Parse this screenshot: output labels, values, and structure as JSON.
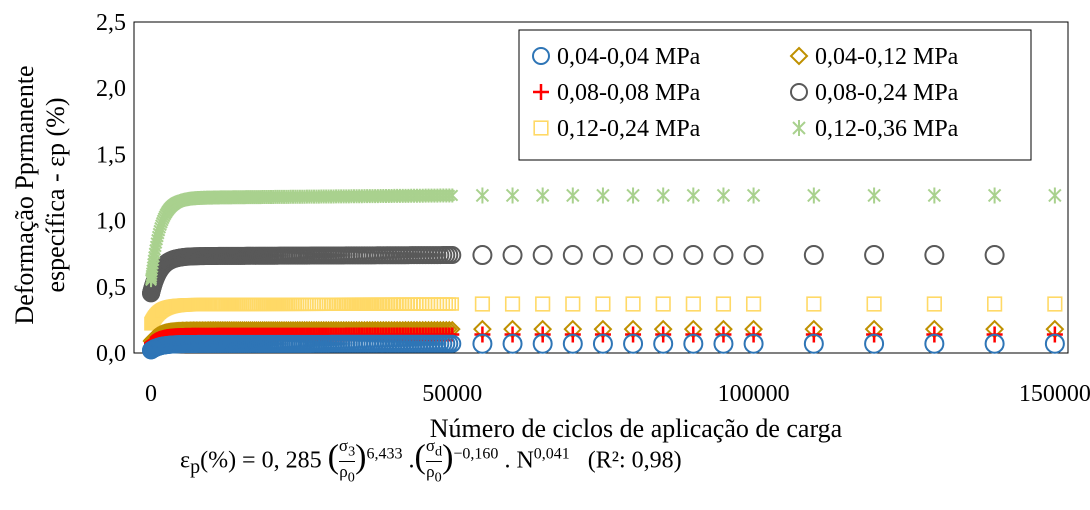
{
  "chart_data": {
    "type": "scatter",
    "title": "",
    "xlabel": "Número de ciclos de aplicação de carga",
    "ylabel_line1": "Deformação Pprmanente",
    "ylabel_line2": "específica - εp (%)",
    "xlim": [
      0,
      155000
    ],
    "ylim": [
      0,
      2.5
    ],
    "xticks": [
      0,
      50000,
      100000,
      150000
    ],
    "xtick_labels": [
      "0",
      "50000",
      "100000",
      "150000"
    ],
    "yticks": [
      0,
      0.5,
      1.0,
      1.5,
      2.0,
      2.5
    ],
    "ytick_labels": [
      "0,0",
      "0,5",
      "1,0",
      "1,5",
      "2,0",
      "2,5"
    ],
    "grid": false,
    "legend_position": "top-right",
    "dense_x": [
      0,
      100,
      300,
      600,
      1000,
      2000,
      3000,
      4500,
      6000,
      8000,
      10000,
      12500,
      15000,
      17500,
      20000,
      22500,
      25000,
      27500,
      30000,
      32500,
      35000,
      37500,
      40000,
      42500,
      45000,
      47500,
      50000
    ],
    "sparse_x": [
      55000,
      60000,
      65000,
      70000,
      75000,
      80000,
      85000,
      90000,
      95000,
      100000,
      110000,
      120000,
      130000,
      140000,
      150000
    ],
    "series": [
      {
        "name": "0,04-0,04 MPa",
        "marker": "circle",
        "color": "#2E75B6",
        "plateau": 0.07,
        "start": 0.02,
        "last_x": 150000
      },
      {
        "name": "0,04-0,12 MPa",
        "marker": "diamond",
        "color": "#BF9000",
        "plateau": 0.18,
        "start": 0.09,
        "last_x": 150000
      },
      {
        "name": "0,08-0,08 MPa",
        "marker": "plus",
        "color": "#FF0000",
        "plateau": 0.14,
        "start": 0.07,
        "last_x": 150000
      },
      {
        "name": "0,08-0,24 MPa",
        "marker": "circle",
        "color": "#595959",
        "plateau": 0.74,
        "start": 0.45,
        "last_x": 140000
      },
      {
        "name": "0,12-0,24 MPa",
        "marker": "square",
        "color": "#FFD966",
        "plateau": 0.37,
        "start": 0.22,
        "last_x": 150000
      },
      {
        "name": "0,12-0,36 MPa",
        "marker": "asterisk",
        "color": "#A9D18E",
        "plateau": 1.19,
        "start": 0.55,
        "last_x": 150000
      }
    ],
    "formula": {
      "lhs": "ε",
      "lhs_sub": "p",
      "lhs_rest": "(%) = 0, 285",
      "sigma3": "σ",
      "sigma3_sub": "3",
      "rho": "ρ",
      "rho_sub": "0",
      "exp1": "6,433",
      "dot": ".",
      "sigmad": "σ",
      "sigmad_sub": "d",
      "exp2": "−0,160",
      "n_part": ". N",
      "exp3": "0,041",
      "r2": "(R²: 0,98)"
    }
  }
}
